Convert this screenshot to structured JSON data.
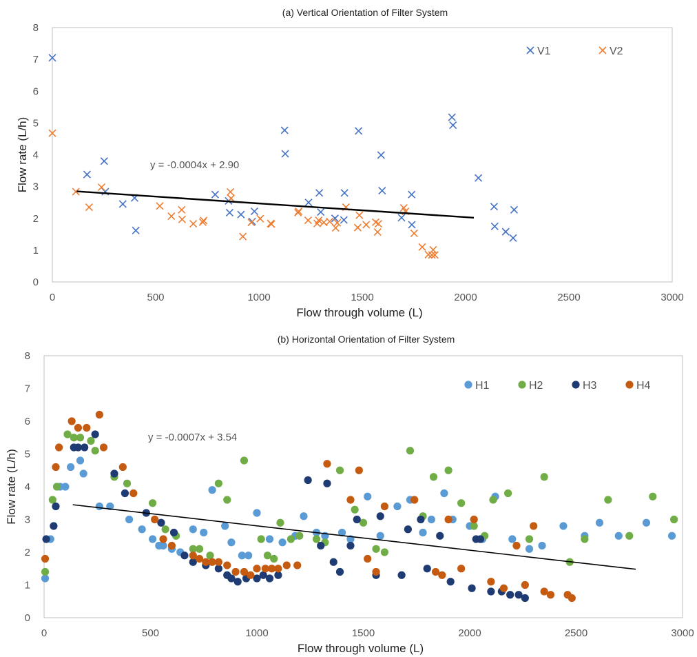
{
  "chart_data": [
    {
      "type": "scatter",
      "title": "(a) Vertical Orientation of Filter System",
      "xlabel": "Flow through volume (L)",
      "ylabel": "Flow rate (L/h)",
      "xlim": [
        0,
        3000
      ],
      "ylim": [
        0,
        8
      ],
      "xticks": [
        "0",
        "500",
        "1000",
        "1500",
        "2000",
        "2500",
        "3000"
      ],
      "yticks": [
        "0",
        "1",
        "2",
        "3",
        "4",
        "5",
        "6",
        "7",
        "8"
      ],
      "marker": "x",
      "legend_position": "top-right",
      "grid": false,
      "trendline": {
        "label": "y = -0.0004x + 2.90",
        "x": [
          118,
          2040
        ],
        "y": [
          2.85,
          2.02
        ]
      },
      "series": [
        {
          "name": "V1",
          "color": "#4472C4",
          "x": [
            0,
            168,
            251,
            256,
            341,
            398,
            404,
            788,
            853,
            858,
            913,
            967,
            978,
            1124,
            1127,
            1240,
            1292,
            1299,
            1368,
            1411,
            1414,
            1482,
            1591,
            1596,
            1690,
            1739,
            1740,
            1934,
            1939,
            2062,
            2138,
            2141,
            2194,
            2230,
            2235
          ],
          "y": [
            7.05,
            3.38,
            3.8,
            2.84,
            2.45,
            2.64,
            1.62,
            2.75,
            2.55,
            2.18,
            2.12,
            1.9,
            2.22,
            4.77,
            4.03,
            2.5,
            2.8,
            2.2,
            2.0,
            1.95,
            2.8,
            4.75,
            3.99,
            2.87,
            2.02,
            2.75,
            1.8,
            5.18,
            4.93,
            3.27,
            2.37,
            1.75,
            1.58,
            1.38,
            2.27
          ]
        },
        {
          "name": "V2",
          "color": "#ED7D31",
          "x": [
            0,
            114,
            178,
            238,
            520,
            576,
            626,
            628,
            682,
            728,
            732,
            862,
            865,
            922,
            963,
            1006,
            1057,
            1060,
            1189,
            1192,
            1238,
            1282,
            1289,
            1314,
            1342,
            1371,
            1379,
            1421,
            1478,
            1486,
            1519,
            1565,
            1574,
            1578,
            1701,
            1709,
            1751,
            1790,
            1820,
            1837,
            1843,
            1851
          ],
          "y": [
            4.68,
            2.84,
            2.35,
            2.98,
            2.39,
            2.07,
            2.27,
            1.97,
            1.83,
            1.88,
            1.93,
            2.83,
            2.63,
            1.43,
            1.87,
            1.99,
            1.84,
            1.82,
            2.18,
            2.22,
            1.94,
            1.84,
            1.94,
            1.87,
            1.9,
            1.7,
            1.86,
            2.35,
            1.71,
            2.1,
            1.8,
            1.88,
            1.57,
            1.83,
            2.33,
            2.22,
            1.53,
            1.1,
            0.86,
            0.85,
            1.01,
            0.85
          ]
        }
      ]
    },
    {
      "type": "scatter",
      "title": "(b) Horizontal Orientation of Filter System",
      "xlabel": "Flow through volume (L)",
      "ylabel": "Flow rate (L/h)",
      "xlim": [
        0,
        3000
      ],
      "ylim": [
        0,
        8
      ],
      "xticks": [
        "0",
        "500",
        "1000",
        "1500",
        "2000",
        "2500",
        "3000"
      ],
      "yticks": [
        "0",
        "1",
        "2",
        "3",
        "4",
        "5",
        "6",
        "7",
        "8"
      ],
      "marker": "circle",
      "legend_position": "top-right",
      "grid": false,
      "trendline": {
        "label": "y = -0.0007x + 3.54",
        "x": [
          135,
          2780
        ],
        "y": [
          3.45,
          1.48
        ]
      },
      "series": [
        {
          "name": "H1",
          "color": "#5B9BD5",
          "x": [
            5,
            30,
            75,
            100,
            125,
            170,
            185,
            260,
            310,
            400,
            460,
            510,
            540,
            560,
            600,
            640,
            700,
            750,
            790,
            850,
            880,
            930,
            960,
            1000,
            1060,
            1120,
            1180,
            1220,
            1280,
            1320,
            1400,
            1440,
            1520,
            1580,
            1660,
            1720,
            1780,
            1820,
            1880,
            1920,
            2000,
            2060,
            2120,
            2200,
            2280,
            2340,
            2440,
            2540,
            2610,
            2700,
            2830,
            2950
          ],
          "y": [
            1.2,
            2.4,
            4.0,
            4.0,
            4.6,
            4.8,
            4.4,
            3.4,
            3.4,
            3.0,
            2.7,
            2.4,
            2.2,
            2.2,
            2.1,
            2.0,
            2.7,
            2.6,
            3.9,
            2.8,
            2.3,
            1.9,
            1.9,
            3.2,
            2.4,
            2.3,
            2.5,
            3.1,
            2.6,
            2.5,
            2.6,
            2.4,
            3.7,
            2.5,
            3.4,
            3.6,
            2.6,
            3.0,
            3.8,
            3.0,
            2.8,
            2.4,
            3.7,
            2.4,
            2.1,
            2.2,
            2.8,
            2.5,
            2.9,
            2.5,
            2.9,
            2.5
          ]
        },
        {
          "name": "H2",
          "color": "#70AD47",
          "x": [
            5,
            40,
            60,
            110,
            140,
            170,
            220,
            240,
            330,
            390,
            510,
            570,
            620,
            700,
            730,
            780,
            820,
            860,
            940,
            1020,
            1050,
            1080,
            1110,
            1160,
            1200,
            1280,
            1320,
            1390,
            1460,
            1500,
            1560,
            1600,
            1720,
            1780,
            1830,
            1900,
            1960,
            2020,
            2070,
            2110,
            2180,
            2280,
            2350,
            2470,
            2540,
            2650,
            2750,
            2860,
            2960
          ],
          "y": [
            1.4,
            3.6,
            4.0,
            5.6,
            5.5,
            5.5,
            5.4,
            5.1,
            4.3,
            4.1,
            3.5,
            2.7,
            2.5,
            2.1,
            2.1,
            1.9,
            4.1,
            3.6,
            4.8,
            2.4,
            1.9,
            1.8,
            2.9,
            2.4,
            2.5,
            2.4,
            2.3,
            4.5,
            3.3,
            2.9,
            2.1,
            2.0,
            5.1,
            3.1,
            4.3,
            4.5,
            3.5,
            2.8,
            2.5,
            3.6,
            3.8,
            2.4,
            4.3,
            1.7,
            2.4,
            3.6,
            2.5,
            3.7,
            3.0
          ]
        },
        {
          "name": "H3",
          "color": "#1F3B73",
          "x": [
            10,
            45,
            55,
            140,
            160,
            190,
            240,
            330,
            380,
            480,
            550,
            610,
            660,
            700,
            760,
            820,
            860,
            880,
            910,
            950,
            1000,
            1030,
            1060,
            1100,
            1240,
            1300,
            1330,
            1360,
            1390,
            1440,
            1470,
            1560,
            1580,
            1680,
            1710,
            1770,
            1800,
            1860,
            1910,
            2010,
            2030,
            2050,
            2100,
            2150,
            2190,
            2230,
            2260
          ],
          "y": [
            2.4,
            2.8,
            3.4,
            5.2,
            5.2,
            5.2,
            5.6,
            4.4,
            3.8,
            3.2,
            2.9,
            2.6,
            1.9,
            1.7,
            1.6,
            1.5,
            1.3,
            1.2,
            1.1,
            1.2,
            1.2,
            1.3,
            1.2,
            1.3,
            4.2,
            2.2,
            4.1,
            1.7,
            1.4,
            2.2,
            3.0,
            1.3,
            3.1,
            1.3,
            2.7,
            3.0,
            1.5,
            2.5,
            1.1,
            0.9,
            2.4,
            2.4,
            0.8,
            0.8,
            0.7,
            0.7,
            0.6
          ]
        },
        {
          "name": "H4",
          "color": "#C55A11",
          "x": [
            5,
            55,
            70,
            130,
            160,
            200,
            260,
            280,
            370,
            420,
            520,
            560,
            600,
            700,
            730,
            760,
            790,
            820,
            860,
            900,
            940,
            970,
            1000,
            1040,
            1070,
            1100,
            1140,
            1190,
            1330,
            1440,
            1480,
            1520,
            1560,
            1600,
            1740,
            1840,
            1870,
            1900,
            1960,
            2020,
            2100,
            2160,
            2220,
            2260,
            2300,
            2350,
            2380,
            2460,
            2480
          ],
          "y": [
            1.8,
            4.6,
            5.2,
            6.0,
            5.8,
            5.8,
            6.2,
            5.2,
            4.6,
            3.8,
            3.0,
            2.4,
            2.2,
            1.9,
            1.8,
            1.7,
            1.7,
            1.7,
            1.6,
            1.4,
            1.4,
            1.3,
            1.5,
            1.5,
            1.5,
            1.5,
            1.6,
            1.6,
            4.7,
            3.6,
            4.5,
            1.8,
            1.4,
            3.4,
            3.6,
            1.4,
            1.3,
            3.0,
            1.5,
            3.0,
            1.1,
            0.9,
            2.2,
            1.0,
            2.8,
            0.8,
            0.7,
            0.7,
            0.6
          ]
        }
      ]
    }
  ]
}
